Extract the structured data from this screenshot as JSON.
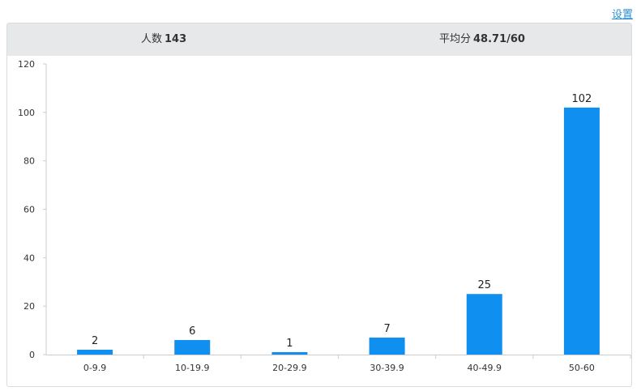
{
  "header": {
    "settings_link": "设置",
    "count_label": "人数",
    "count_value": "143",
    "avg_label": "平均分",
    "avg_value": "48.71/60"
  },
  "chart_data": {
    "type": "bar",
    "categories": [
      "0-9.9",
      "10-19.9",
      "20-29.9",
      "30-39.9",
      "40-49.9",
      "50-60"
    ],
    "values": [
      2,
      6,
      1,
      7,
      25,
      102
    ],
    "ylim": [
      0,
      120
    ],
    "yticks": [
      0,
      20,
      40,
      60,
      80,
      100,
      120
    ],
    "bar_color": "#0f8fef",
    "axis_color": "#cccccc",
    "grid": false
  }
}
